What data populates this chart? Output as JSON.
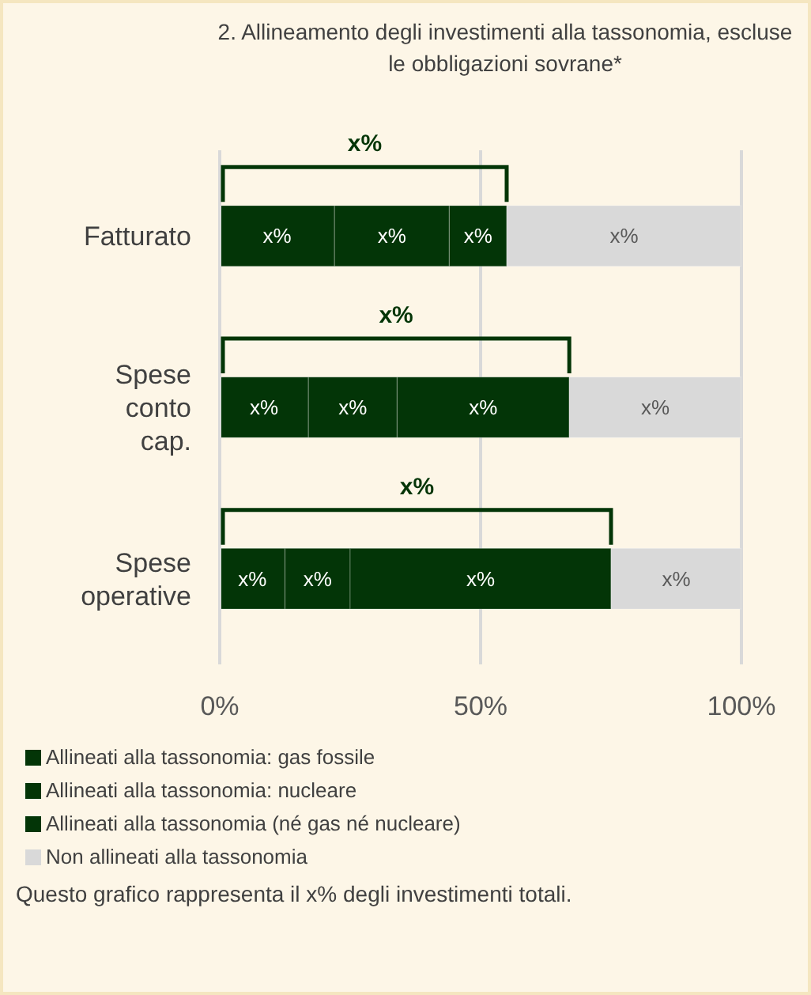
{
  "chart_data": {
    "type": "bar",
    "orientation": "horizontal",
    "stacked": true,
    "title": "2. Allineamento degli investimenti alla tassonomia, escluse le obbligazioni sovrane*",
    "categories": [
      "Fatturato",
      "Spese conto cap.",
      "Spese operative"
    ],
    "series": [
      {
        "name": "Allineati alla tassonomia: gas fossile",
        "color": "#033507",
        "values": [
          22,
          17,
          12.5
        ],
        "value_labels": [
          "x%",
          "x%",
          "x%"
        ]
      },
      {
        "name": "Allineati alla tassonomia: nucleare",
        "color": "#033507",
        "values": [
          22,
          17,
          12.5
        ],
        "value_labels": [
          "x%",
          "x%",
          "x%"
        ]
      },
      {
        "name": "Allineati alla tassonomia (né gas né nucleare)",
        "color": "#033507",
        "values": [
          11,
          33,
          50
        ],
        "value_labels": [
          "x%",
          "x%",
          "x%"
        ]
      },
      {
        "name": "Non allineati alla tassonomia",
        "color": "#d9d9d9",
        "values": [
          45,
          33,
          25
        ],
        "value_labels": [
          "x%",
          "x%",
          "x%"
        ]
      }
    ],
    "xlim": [
      0,
      100
    ],
    "xticks": [
      {
        "value": 0,
        "label": "0%"
      },
      {
        "value": 50,
        "label": "50%"
      },
      {
        "value": 100,
        "label": "100%"
      }
    ],
    "grid": "x",
    "legend": "bottom",
    "annotations": [
      "x%",
      "x%",
      "x%",
      "Questo grafico rappresenta il x% degli investimenti totali."
    ]
  }
}
